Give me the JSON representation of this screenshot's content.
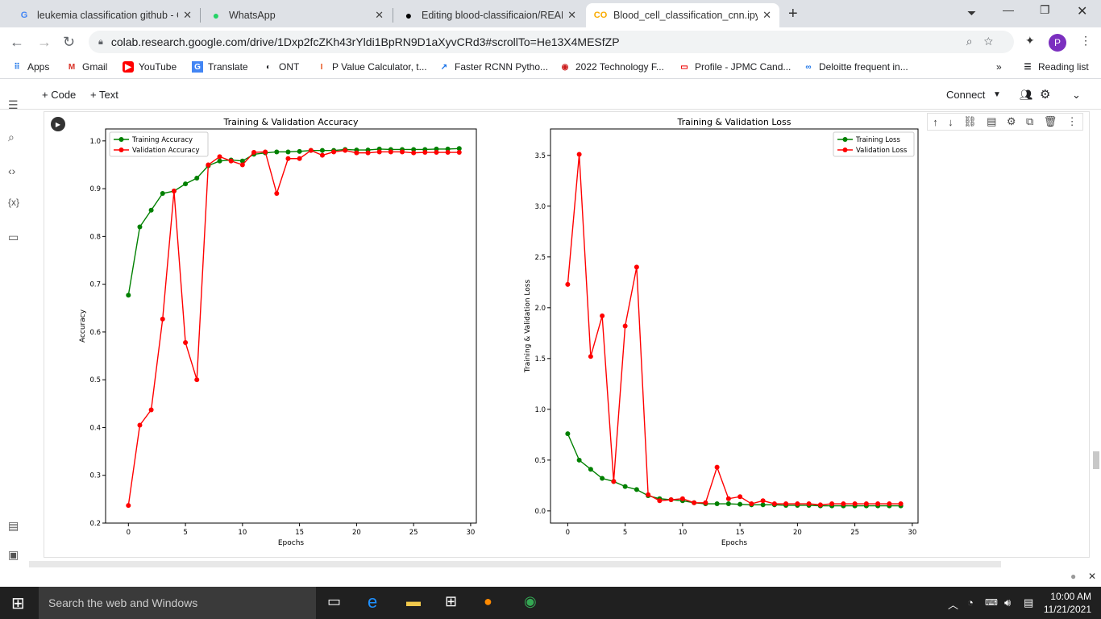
{
  "tabs": [
    {
      "label": "leukemia classification github - G",
      "icon": "google-icon"
    },
    {
      "label": "WhatsApp",
      "icon": "whatsapp-icon"
    },
    {
      "label": "Editing blood-classificaion/READ",
      "icon": "github-icon"
    },
    {
      "label": "Blood_cell_classification_cnn.ipyn",
      "icon": "colab-icon"
    }
  ],
  "url": "colab.research.google.com/drive/1Dxp2fcZKh43rYldi1BpRN9D1aXyvCRd3#scrollTo=He13X4MESfZP",
  "profile_initial": "P",
  "bookmarks": [
    "Apps",
    "Gmail",
    "YouTube",
    "Translate",
    "ONT",
    "P Value Calculator, t...",
    "Faster RCNN Pytho...",
    "2022 Technology F...",
    "Profile - JPMC Cand...",
    "Deloitte frequent in..."
  ],
  "reading_list": "Reading list",
  "colab": {
    "add_code": "+ Code",
    "add_text": "+ Text",
    "connect": "Connect"
  },
  "taskbar": {
    "search_placeholder": "Search the web and Windows",
    "time": "10:00 AM",
    "date": "11/21/2021"
  },
  "colors": {
    "train": "#008000",
    "val": "#ff0000"
  },
  "chart_data": [
    {
      "type": "line",
      "title": "Training & Validation Accuracy",
      "xlabel": "Epochs",
      "ylabel": "Accuracy",
      "xlim": [
        -2,
        30.5
      ],
      "ylim": [
        0.2,
        1.025
      ],
      "xticks": [
        "0",
        "5",
        "10",
        "15",
        "20",
        "25",
        "30"
      ],
      "yticks": [
        "0.2",
        "0.3",
        "0.4",
        "0.5",
        "0.6",
        "0.7",
        "0.8",
        "0.9",
        "1.0"
      ],
      "legend_position": "top-left",
      "x": [
        0,
        1,
        2,
        3,
        4,
        5,
        6,
        7,
        8,
        9,
        10,
        11,
        12,
        13,
        14,
        15,
        16,
        17,
        18,
        19,
        20,
        21,
        22,
        23,
        24,
        25,
        26,
        27,
        28,
        29
      ],
      "series": [
        {
          "name": "Training Accuracy",
          "values": [
            0.677,
            0.82,
            0.855,
            0.89,
            0.895,
            0.91,
            0.922,
            0.948,
            0.958,
            0.96,
            0.958,
            0.972,
            0.975,
            0.977,
            0.977,
            0.978,
            0.98,
            0.98,
            0.98,
            0.982,
            0.981,
            0.981,
            0.983,
            0.982,
            0.982,
            0.982,
            0.982,
            0.983,
            0.983,
            0.984
          ]
        },
        {
          "name": "Validation Accuracy",
          "values": [
            0.237,
            0.405,
            0.437,
            0.627,
            0.895,
            0.578,
            0.5,
            0.95,
            0.967,
            0.958,
            0.95,
            0.976,
            0.977,
            0.89,
            0.963,
            0.963,
            0.98,
            0.97,
            0.977,
            0.98,
            0.975,
            0.975,
            0.977,
            0.977,
            0.977,
            0.975,
            0.976,
            0.976,
            0.976,
            0.976
          ]
        }
      ]
    },
    {
      "type": "line",
      "title": "Training & Validation Loss",
      "xlabel": "Epochs",
      "ylabel": "Training & Validation Loss",
      "xlim": [
        -1.5,
        30.5
      ],
      "ylim": [
        -0.12,
        3.76
      ],
      "xticks": [
        "0",
        "5",
        "10",
        "15",
        "20",
        "25",
        "30"
      ],
      "yticks": [
        "0.0",
        "0.5",
        "1.0",
        "1.5",
        "2.0",
        "2.5",
        "3.0",
        "3.5"
      ],
      "legend_position": "top-right",
      "x": [
        0,
        1,
        2,
        3,
        4,
        5,
        6,
        7,
        8,
        9,
        10,
        11,
        12,
        13,
        14,
        15,
        16,
        17,
        18,
        19,
        20,
        21,
        22,
        23,
        24,
        25,
        26,
        27,
        28,
        29
      ],
      "series": [
        {
          "name": "Training Loss",
          "values": [
            0.76,
            0.5,
            0.41,
            0.32,
            0.29,
            0.24,
            0.21,
            0.15,
            0.12,
            0.11,
            0.1,
            0.08,
            0.07,
            0.07,
            0.07,
            0.065,
            0.06,
            0.06,
            0.06,
            0.055,
            0.055,
            0.055,
            0.05,
            0.05,
            0.05,
            0.05,
            0.05,
            0.05,
            0.05,
            0.05
          ]
        },
        {
          "name": "Validation Loss",
          "values": [
            2.23,
            3.51,
            1.52,
            1.92,
            0.29,
            1.82,
            2.4,
            0.16,
            0.1,
            0.11,
            0.12,
            0.08,
            0.08,
            0.43,
            0.12,
            0.14,
            0.07,
            0.1,
            0.07,
            0.07,
            0.07,
            0.07,
            0.06,
            0.07,
            0.07,
            0.07,
            0.07,
            0.07,
            0.07,
            0.07
          ]
        }
      ]
    }
  ]
}
